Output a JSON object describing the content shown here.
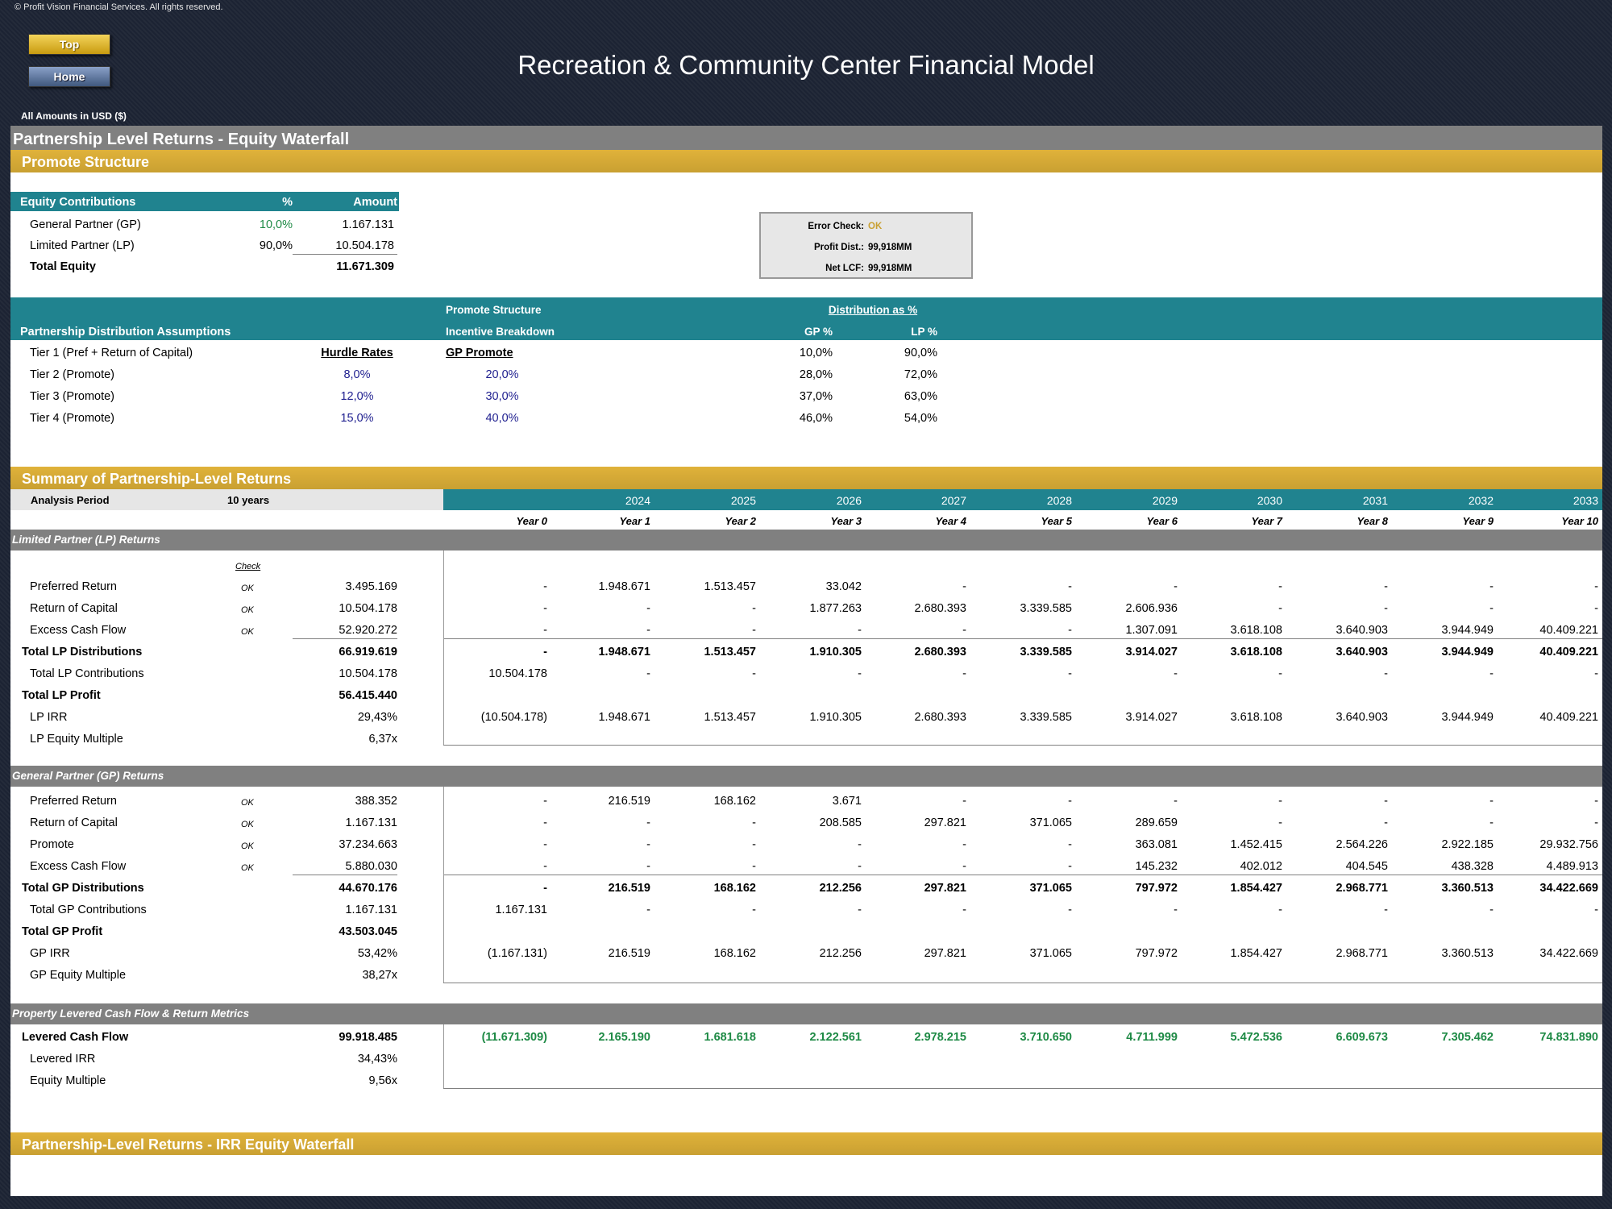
{
  "copyright": "© Profit Vision Financial Services. All rights reserved.",
  "nav": {
    "top": "Top",
    "home": "Home"
  },
  "title": "Recreation & Community Center Financial Model",
  "amounts_label": "All Amounts in  USD ($)",
  "section_title": "Partnership Level Returns - Equity Waterfall",
  "promote_title": "Promote Structure",
  "equity": {
    "header": {
      "label": "Equity Contributions",
      "pct": "%",
      "amount": "Amount"
    },
    "rows": [
      {
        "label": "General Partner (GP)",
        "pct": "10,0%",
        "amount": "1.167.131"
      },
      {
        "label": "Limited Partner (LP)",
        "pct": "90,0%",
        "amount": "10.504.178"
      },
      {
        "label": "Total Equity",
        "pct": "",
        "amount": "11.671.309"
      }
    ]
  },
  "checks": [
    {
      "label": "Error Check:",
      "value": "OK"
    },
    {
      "label": "Profit Dist.:",
      "value": "99,918MM"
    },
    {
      "label": "Net LCF:",
      "value": "99,918MM"
    }
  ],
  "dist": {
    "header_left": "Partnership Distribution Assumptions",
    "promote_structure": "Promote Structure",
    "incentive_breakdown": "Incentive Breakdown",
    "distribution_as_pct": "Distribution as %",
    "gp_pct": "GP %",
    "lp_pct": "LP %",
    "hurdle_header": "Hurdle Rates",
    "gp_promote_header": "GP Promote",
    "tiers": [
      {
        "label": "Tier 1 (Pref + Return of Capital)",
        "hurdle": "",
        "promote": "",
        "gp": "10,0%",
        "lp": "90,0%"
      },
      {
        "label": "Tier 2 (Promote)",
        "hurdle": "8,0%",
        "promote": "20,0%",
        "gp": "28,0%",
        "lp": "72,0%"
      },
      {
        "label": "Tier 3 (Promote)",
        "hurdle": "12,0%",
        "promote": "30,0%",
        "gp": "37,0%",
        "lp": "63,0%"
      },
      {
        "label": "Tier 4 (Promote)",
        "hurdle": "15,0%",
        "promote": "40,0%",
        "gp": "46,0%",
        "lp": "54,0%"
      }
    ]
  },
  "summary_title": "Summary of Partnership-Level Returns",
  "analysis": {
    "label": "Analysis Period",
    "value": "10 years"
  },
  "years": [
    "",
    "2024",
    "2025",
    "2026",
    "2027",
    "2028",
    "2029",
    "2030",
    "2031",
    "2032",
    "2033"
  ],
  "year_labels": [
    "Year 0",
    "Year 1",
    "Year 2",
    "Year 3",
    "Year 4",
    "Year 5",
    "Year 6",
    "Year 7",
    "Year 8",
    "Year 9",
    "Year 10"
  ],
  "check_label": "Check",
  "lp": {
    "title": "Limited Partner (LP) Returns",
    "rows": [
      {
        "label": "Preferred Return",
        "check": "OK",
        "total": "3.495.169",
        "vals": [
          "-",
          "1.948.671",
          "1.513.457",
          "33.042",
          "-",
          "-",
          "-",
          "-",
          "-",
          "-",
          "-"
        ]
      },
      {
        "label": "Return of Capital",
        "check": "OK",
        "total": "10.504.178",
        "vals": [
          "-",
          "-",
          "-",
          "1.877.263",
          "2.680.393",
          "3.339.585",
          "2.606.936",
          "-",
          "-",
          "-",
          "-"
        ]
      },
      {
        "label": "Excess Cash Flow",
        "check": "OK",
        "total": "52.920.272",
        "vals": [
          "-",
          "-",
          "-",
          "-",
          "-",
          "-",
          "1.307.091",
          "3.618.108",
          "3.640.903",
          "3.944.949",
          "40.409.221"
        ]
      },
      {
        "label": "Total LP Distributions",
        "check": "",
        "total": "66.919.619",
        "vals": [
          "-",
          "1.948.671",
          "1.513.457",
          "1.910.305",
          "2.680.393",
          "3.339.585",
          "3.914.027",
          "3.618.108",
          "3.640.903",
          "3.944.949",
          "40.409.221"
        ]
      },
      {
        "label": "Total LP Contributions",
        "check": "",
        "total": "10.504.178",
        "vals": [
          "10.504.178",
          "-",
          "-",
          "-",
          "-",
          "-",
          "-",
          "-",
          "-",
          "-",
          "-"
        ]
      },
      {
        "label": "Total LP Profit",
        "check": "",
        "total": "56.415.440",
        "vals": []
      },
      {
        "label": "LP IRR",
        "check": "",
        "total": "29,43%",
        "vals": [
          "(10.504.178)",
          "1.948.671",
          "1.513.457",
          "1.910.305",
          "2.680.393",
          "3.339.585",
          "3.914.027",
          "3.618.108",
          "3.640.903",
          "3.944.949",
          "40.409.221"
        ]
      },
      {
        "label": "LP Equity Multiple",
        "check": "",
        "total": "6,37x",
        "vals": []
      }
    ]
  },
  "gp": {
    "title": "General Partner (GP) Returns",
    "rows": [
      {
        "label": "Preferred Return",
        "check": "OK",
        "total": "388.352",
        "vals": [
          "-",
          "216.519",
          "168.162",
          "3.671",
          "-",
          "-",
          "-",
          "-",
          "-",
          "-",
          "-"
        ]
      },
      {
        "label": "Return of Capital",
        "check": "OK",
        "total": "1.167.131",
        "vals": [
          "-",
          "-",
          "-",
          "208.585",
          "297.821",
          "371.065",
          "289.659",
          "-",
          "-",
          "-",
          "-"
        ]
      },
      {
        "label": "Promote",
        "check": "OK",
        "total": "37.234.663",
        "vals": [
          "-",
          "-",
          "-",
          "-",
          "-",
          "-",
          "363.081",
          "1.452.415",
          "2.564.226",
          "2.922.185",
          "29.932.756"
        ]
      },
      {
        "label": "Excess Cash Flow",
        "check": "OK",
        "total": "5.880.030",
        "vals": [
          "-",
          "-",
          "-",
          "-",
          "-",
          "-",
          "145.232",
          "402.012",
          "404.545",
          "438.328",
          "4.489.913"
        ]
      },
      {
        "label": "Total GP Distributions",
        "check": "",
        "total": "44.670.176",
        "vals": [
          "-",
          "216.519",
          "168.162",
          "212.256",
          "297.821",
          "371.065",
          "797.972",
          "1.854.427",
          "2.968.771",
          "3.360.513",
          "34.422.669"
        ]
      },
      {
        "label": "Total GP Contributions",
        "check": "",
        "total": "1.167.131",
        "vals": [
          "1.167.131",
          "-",
          "-",
          "-",
          "-",
          "-",
          "-",
          "-",
          "-",
          "-",
          "-"
        ]
      },
      {
        "label": "Total GP Profit",
        "check": "",
        "total": "43.503.045",
        "vals": []
      },
      {
        "label": "GP IRR",
        "check": "",
        "total": "53,42%",
        "vals": [
          "(1.167.131)",
          "216.519",
          "168.162",
          "212.256",
          "297.821",
          "371.065",
          "797.972",
          "1.854.427",
          "2.968.771",
          "3.360.513",
          "34.422.669"
        ]
      },
      {
        "label": "GP Equity Multiple",
        "check": "",
        "total": "38,27x",
        "vals": []
      }
    ]
  },
  "prop": {
    "title": "Property Levered Cash Flow & Return Metrics",
    "rows": [
      {
        "label": "Levered Cash Flow",
        "check": "",
        "total": "99.918.485",
        "vals": [
          "(11.671.309)",
          "2.165.190",
          "1.681.618",
          "2.122.561",
          "2.978.215",
          "3.710.650",
          "4.711.999",
          "5.472.536",
          "6.609.673",
          "7.305.462",
          "74.831.890"
        ]
      },
      {
        "label": "Levered IRR",
        "check": "",
        "total": "34,43%",
        "vals": []
      },
      {
        "label": "Equity Multiple",
        "check": "",
        "total": "9,56x",
        "vals": []
      }
    ]
  },
  "irr_title": "Partnership-Level Returns - IRR Equity Waterfall"
}
